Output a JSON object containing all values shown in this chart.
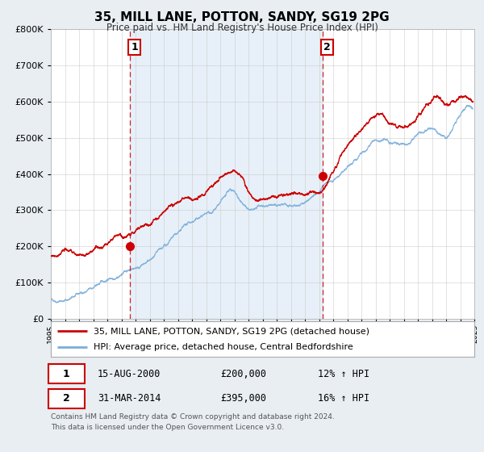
{
  "title": "35, MILL LANE, POTTON, SANDY, SG19 2PG",
  "subtitle": "Price paid vs. HM Land Registry's House Price Index (HPI)",
  "legend_label_red": "35, MILL LANE, POTTON, SANDY, SG19 2PG (detached house)",
  "legend_label_blue": "HPI: Average price, detached house, Central Bedfordshire",
  "red_color": "#cc0000",
  "blue_color": "#7aaedb",
  "fill_color": "#d6e8f5",
  "background_color": "#e8eef2",
  "plot_bg_color": "#ffffff",
  "grid_color": "#cccccc",
  "annotation1_date": "15-AUG-2000",
  "annotation1_price": "£200,000",
  "annotation1_hpi": "12% ↑ HPI",
  "annotation2_date": "31-MAR-2014",
  "annotation2_price": "£395,000",
  "annotation2_hpi": "16% ↑ HPI",
  "vline1_x": 2000.625,
  "vline2_x": 2014.25,
  "marker1_x": 2000.625,
  "marker1_y": 200000,
  "marker2_x": 2014.25,
  "marker2_y": 395000,
  "ylim": [
    0,
    800000
  ],
  "xlim": [
    1995,
    2025
  ],
  "footer": "Contains HM Land Registry data © Crown copyright and database right 2024.\nThis data is licensed under the Open Government Licence v3.0."
}
